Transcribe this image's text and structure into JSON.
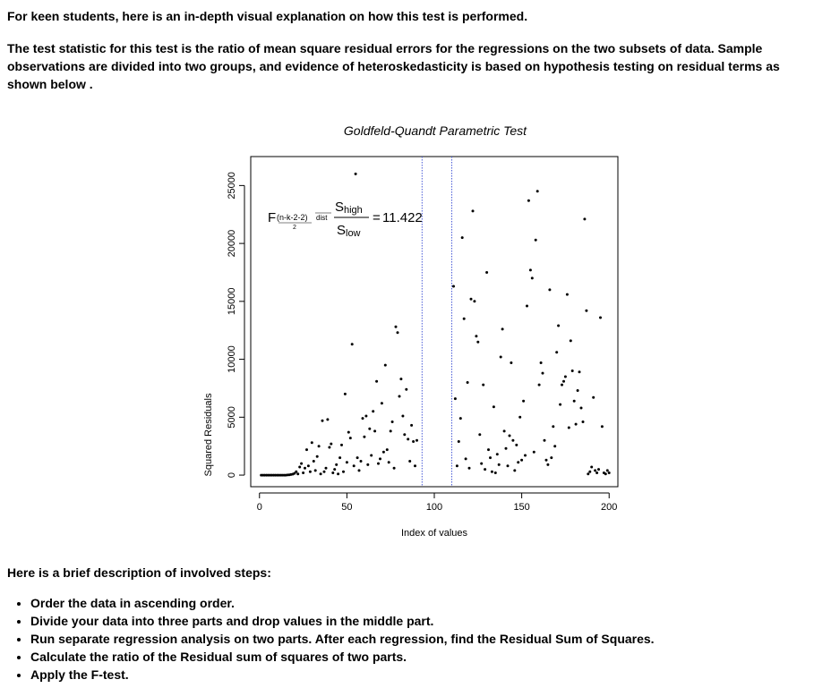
{
  "intro": "For keen students, here is an in-depth visual explanation on how this test is performed.",
  "statistic_text": "The test statistic for this test is the ratio of mean square residual errors for the regressions on the two subsets of data. Sample observations are divided into two groups, and evidence of heteroskedasticity is based on hypothesis testing on residual terms as shown below .",
  "steps_heading": "Here is a brief description of involved steps:",
  "steps": [
    "Order the data in ascending order.",
    "Divide your data into three parts and drop values in the middle part.",
    "Run separate regression analysis on two parts. After each regression, find the Residual Sum of Squares.",
    "Calculate the ratio of the Residual sum of squares of two parts.",
    "Apply the F-test."
  ],
  "chart_data": {
    "type": "scatter",
    "title": "Goldfeld-Quandt Parametric Test",
    "xlabel": "Index of values",
    "ylabel": "Squared Residuals",
    "xlim": [
      -5,
      205
    ],
    "ylim": [
      -1000,
      27500
    ],
    "xticks": [
      0,
      50,
      100,
      150,
      200
    ],
    "yticks": [
      0,
      5000,
      10000,
      15000,
      20000,
      25000
    ],
    "grid": false,
    "split_lines_x": [
      93,
      110
    ],
    "annotation": {
      "F": "F",
      "df": "(n-k-2-2)",
      "half": "2",
      "dist": "dist",
      "num_sub": "high",
      "den_sub": "low",
      "S": "S",
      "equals": "=",
      "value": "11.422"
    },
    "points": [
      [
        1,
        0
      ],
      [
        2,
        0
      ],
      [
        3,
        0
      ],
      [
        4,
        0
      ],
      [
        5,
        0
      ],
      [
        6,
        0
      ],
      [
        7,
        0
      ],
      [
        8,
        0
      ],
      [
        9,
        0
      ],
      [
        10,
        0
      ],
      [
        11,
        0
      ],
      [
        12,
        0
      ],
      [
        13,
        0
      ],
      [
        14,
        0
      ],
      [
        15,
        0
      ],
      [
        16,
        10
      ],
      [
        17,
        20
      ],
      [
        18,
        50
      ],
      [
        19,
        80
      ],
      [
        20,
        150
      ],
      [
        21,
        300
      ],
      [
        22,
        100
      ],
      [
        23,
        700
      ],
      [
        24,
        1000
      ],
      [
        25,
        200
      ],
      [
        26,
        600
      ],
      [
        27,
        2200
      ],
      [
        28,
        800
      ],
      [
        29,
        300
      ],
      [
        30,
        2800
      ],
      [
        31,
        1200
      ],
      [
        32,
        400
      ],
      [
        33,
        1600
      ],
      [
        34,
        2500
      ],
      [
        35,
        100
      ],
      [
        36,
        4700
      ],
      [
        37,
        300
      ],
      [
        38,
        600
      ],
      [
        39,
        4800
      ],
      [
        40,
        2400
      ],
      [
        41,
        2700
      ],
      [
        42,
        200
      ],
      [
        43,
        500
      ],
      [
        44,
        900
      ],
      [
        45,
        100
      ],
      [
        46,
        1500
      ],
      [
        47,
        2600
      ],
      [
        48,
        300
      ],
      [
        49,
        7000
      ],
      [
        50,
        1100
      ],
      [
        51,
        3700
      ],
      [
        52,
        3200
      ],
      [
        53,
        11300
      ],
      [
        54,
        800
      ],
      [
        55,
        26000
      ],
      [
        56,
        1500
      ],
      [
        57,
        400
      ],
      [
        58,
        1200
      ],
      [
        59,
        4900
      ],
      [
        60,
        3300
      ],
      [
        61,
        5100
      ],
      [
        62,
        900
      ],
      [
        63,
        4000
      ],
      [
        64,
        1700
      ],
      [
        65,
        5500
      ],
      [
        66,
        3800
      ],
      [
        67,
        8100
      ],
      [
        68,
        1000
      ],
      [
        69,
        1400
      ],
      [
        70,
        6200
      ],
      [
        71,
        2000
      ],
      [
        72,
        9500
      ],
      [
        73,
        2200
      ],
      [
        74,
        1100
      ],
      [
        75,
        3800
      ],
      [
        76,
        4600
      ],
      [
        77,
        600
      ],
      [
        78,
        12800
      ],
      [
        79,
        12300
      ],
      [
        80,
        6800
      ],
      [
        81,
        8300
      ],
      [
        82,
        5100
      ],
      [
        83,
        3500
      ],
      [
        84,
        7400
      ],
      [
        85,
        3100
      ],
      [
        86,
        1200
      ],
      [
        87,
        4300
      ],
      [
        88,
        2900
      ],
      [
        89,
        800
      ],
      [
        90,
        3000
      ],
      [
        111,
        16300
      ],
      [
        112,
        6600
      ],
      [
        113,
        800
      ],
      [
        114,
        2900
      ],
      [
        115,
        4900
      ],
      [
        116,
        20500
      ],
      [
        117,
        13500
      ],
      [
        118,
        1400
      ],
      [
        119,
        8000
      ],
      [
        120,
        600
      ],
      [
        121,
        15200
      ],
      [
        122,
        22800
      ],
      [
        123,
        15000
      ],
      [
        124,
        12000
      ],
      [
        125,
        11500
      ],
      [
        126,
        3500
      ],
      [
        127,
        1000
      ],
      [
        128,
        7800
      ],
      [
        129,
        500
      ],
      [
        130,
        17500
      ],
      [
        131,
        2200
      ],
      [
        132,
        1500
      ],
      [
        133,
        300
      ],
      [
        134,
        5900
      ],
      [
        135,
        200
      ],
      [
        136,
        1800
      ],
      [
        137,
        900
      ],
      [
        138,
        10200
      ],
      [
        139,
        12600
      ],
      [
        140,
        3800
      ],
      [
        141,
        2300
      ],
      [
        142,
        800
      ],
      [
        143,
        3400
      ],
      [
        144,
        9700
      ],
      [
        145,
        3000
      ],
      [
        146,
        400
      ],
      [
        147,
        2600
      ],
      [
        148,
        1100
      ],
      [
        149,
        5000
      ],
      [
        150,
        1300
      ],
      [
        151,
        6400
      ],
      [
        152,
        1700
      ],
      [
        153,
        14600
      ],
      [
        154,
        23700
      ],
      [
        155,
        17700
      ],
      [
        156,
        17000
      ],
      [
        157,
        2000
      ],
      [
        158,
        20300
      ],
      [
        159,
        24500
      ],
      [
        160,
        7800
      ],
      [
        161,
        9700
      ],
      [
        162,
        8800
      ],
      [
        163,
        3000
      ],
      [
        164,
        1300
      ],
      [
        165,
        900
      ],
      [
        166,
        16000
      ],
      [
        167,
        1500
      ],
      [
        168,
        4200
      ],
      [
        169,
        2500
      ],
      [
        170,
        10600
      ],
      [
        171,
        12900
      ],
      [
        172,
        6100
      ],
      [
        173,
        7800
      ],
      [
        174,
        8100
      ],
      [
        175,
        8500
      ],
      [
        176,
        15600
      ],
      [
        177,
        4100
      ],
      [
        178,
        11600
      ],
      [
        179,
        9000
      ],
      [
        180,
        6400
      ],
      [
        181,
        4400
      ],
      [
        182,
        7300
      ],
      [
        183,
        8900
      ],
      [
        184,
        5800
      ],
      [
        185,
        4600
      ],
      [
        186,
        22100
      ],
      [
        187,
        14200
      ],
      [
        188,
        100
      ],
      [
        189,
        300
      ],
      [
        190,
        700
      ],
      [
        191,
        6700
      ],
      [
        192,
        400
      ],
      [
        193,
        200
      ],
      [
        194,
        500
      ],
      [
        195,
        13600
      ],
      [
        196,
        4200
      ],
      [
        197,
        200
      ],
      [
        198,
        100
      ],
      [
        199,
        400
      ],
      [
        200,
        200
      ]
    ]
  }
}
